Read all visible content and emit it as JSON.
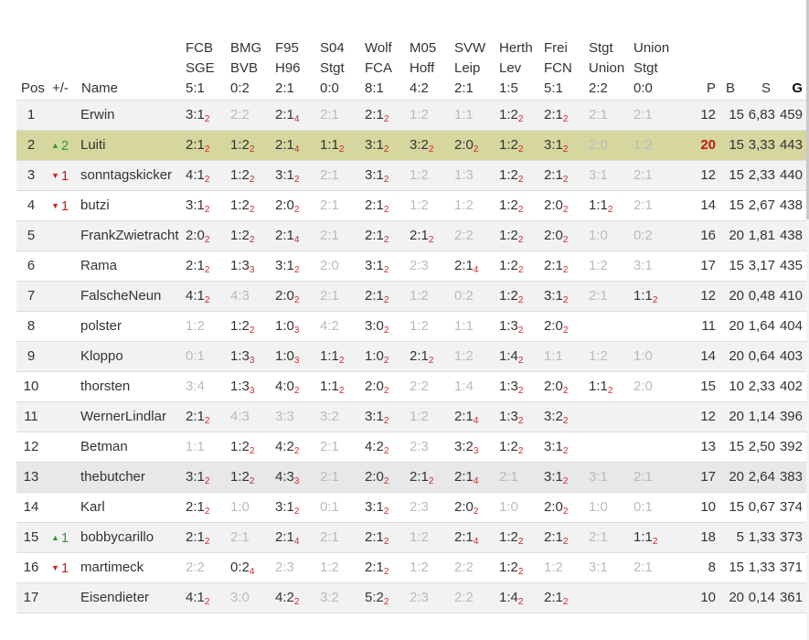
{
  "columns": {
    "pos": "Pos",
    "change": "+/-",
    "name": "Name",
    "matches": [
      {
        "home": "FCB",
        "away": "SGE",
        "result": "5:1"
      },
      {
        "home": "BMG",
        "away": "BVB",
        "result": "0:2"
      },
      {
        "home": "F95",
        "away": "H96",
        "result": "2:1"
      },
      {
        "home": "S04",
        "away": "Stgt",
        "result": "0:0"
      },
      {
        "home": "Wolf",
        "away": "FCA",
        "result": "8:1"
      },
      {
        "home": "M05",
        "away": "Hoff",
        "result": "4:2"
      },
      {
        "home": "SVW",
        "away": "Leip",
        "result": "2:1"
      },
      {
        "home": "Herth",
        "away": "Lev",
        "result": "1:5"
      },
      {
        "home": "Frei",
        "away": "FCN",
        "result": "5:1"
      },
      {
        "home": "Stgt",
        "away": "Union",
        "result": "2:2"
      },
      {
        "home": "Union",
        "away": "Stgt",
        "result": "0:0"
      }
    ],
    "p": "P",
    "b": "B",
    "s": "S",
    "g": "G"
  },
  "rows": [
    {
      "pos": "1",
      "change": "",
      "dir": "",
      "name": "Erwin",
      "tips": [
        {
          "t": "3:1",
          "n": "2"
        },
        {
          "t": "2:2",
          "f": true
        },
        {
          "t": "2:1",
          "n": "4"
        },
        {
          "t": "2:1",
          "f": true
        },
        {
          "t": "2:1",
          "n": "2"
        },
        {
          "t": "1:2",
          "f": true
        },
        {
          "t": "1:1",
          "f": true
        },
        {
          "t": "1:2",
          "n": "2"
        },
        {
          "t": "2:1",
          "n": "2"
        },
        {
          "t": "2:1",
          "f": true
        },
        {
          "t": "2:1",
          "f": true
        }
      ],
      "p": "12",
      "b": "15",
      "s": "6,83",
      "g": "459"
    },
    {
      "pos": "2",
      "change": "2",
      "dir": "up",
      "name": "Luiti",
      "tips": [
        {
          "t": "2:1",
          "n": "2"
        },
        {
          "t": "1:2",
          "n": "2"
        },
        {
          "t": "2:1",
          "n": "4"
        },
        {
          "t": "1:1",
          "n": "2"
        },
        {
          "t": "3:1",
          "n": "2"
        },
        {
          "t": "3:2",
          "n": "2"
        },
        {
          "t": "2:0",
          "n": "2"
        },
        {
          "t": "1:2",
          "n": "2"
        },
        {
          "t": "3:1",
          "n": "2"
        },
        {
          "t": "2:0",
          "f": true
        },
        {
          "t": "1:2",
          "f": true
        }
      ],
      "p": "20",
      "phi": true,
      "b": "15",
      "s": "3,33",
      "g": "443"
    },
    {
      "pos": "3",
      "change": "1",
      "dir": "down",
      "name": "sonntagskicker",
      "tips": [
        {
          "t": "4:1",
          "n": "2"
        },
        {
          "t": "1:2",
          "n": "2"
        },
        {
          "t": "3:1",
          "n": "2"
        },
        {
          "t": "2:1",
          "f": true
        },
        {
          "t": "3:1",
          "n": "2"
        },
        {
          "t": "1:2",
          "f": true
        },
        {
          "t": "1:3",
          "f": true
        },
        {
          "t": "1:2",
          "n": "2"
        },
        {
          "t": "2:1",
          "n": "2"
        },
        {
          "t": "3:1",
          "f": true
        },
        {
          "t": "2:1",
          "f": true
        }
      ],
      "p": "12",
      "b": "15",
      "s": "2,33",
      "g": "440"
    },
    {
      "pos": "4",
      "change": "1",
      "dir": "down",
      "name": "butzi",
      "tips": [
        {
          "t": "3:1",
          "n": "2"
        },
        {
          "t": "1:2",
          "n": "2"
        },
        {
          "t": "2:0",
          "n": "2"
        },
        {
          "t": "2:1",
          "f": true
        },
        {
          "t": "2:1",
          "n": "2"
        },
        {
          "t": "1:2",
          "f": true
        },
        {
          "t": "1:2",
          "f": true
        },
        {
          "t": "1:2",
          "n": "2"
        },
        {
          "t": "2:0",
          "n": "2"
        },
        {
          "t": "1:1",
          "n": "2"
        },
        {
          "t": "2:1",
          "f": true
        }
      ],
      "p": "14",
      "b": "15",
      "s": "2,67",
      "g": "438"
    },
    {
      "pos": "5",
      "change": "",
      "dir": "",
      "name": "FrankZwietracht",
      "tips": [
        {
          "t": "2:0",
          "n": "2"
        },
        {
          "t": "1:2",
          "n": "2"
        },
        {
          "t": "2:1",
          "n": "4"
        },
        {
          "t": "2:1",
          "f": true
        },
        {
          "t": "2:1",
          "n": "2"
        },
        {
          "t": "2:1",
          "n": "2"
        },
        {
          "t": "2:2",
          "f": true
        },
        {
          "t": "1:2",
          "n": "2"
        },
        {
          "t": "2:0",
          "n": "2"
        },
        {
          "t": "1:0",
          "f": true
        },
        {
          "t": "0:2",
          "f": true
        }
      ],
      "p": "16",
      "b": "20",
      "s": "1,81",
      "g": "438"
    },
    {
      "pos": "6",
      "change": "",
      "dir": "",
      "name": "Rama",
      "tips": [
        {
          "t": "2:1",
          "n": "2"
        },
        {
          "t": "1:3",
          "n": "3"
        },
        {
          "t": "3:1",
          "n": "2"
        },
        {
          "t": "2:0",
          "f": true
        },
        {
          "t": "3:1",
          "n": "2"
        },
        {
          "t": "2:3",
          "f": true
        },
        {
          "t": "2:1",
          "n": "4"
        },
        {
          "t": "1:2",
          "n": "2"
        },
        {
          "t": "2:1",
          "n": "2"
        },
        {
          "t": "1:2",
          "f": true
        },
        {
          "t": "3:1",
          "f": true
        }
      ],
      "p": "17",
      "b": "15",
      "s": "3,17",
      "g": "435"
    },
    {
      "pos": "7",
      "change": "",
      "dir": "",
      "name": "FalscheNeun",
      "tips": [
        {
          "t": "4:1",
          "n": "2"
        },
        {
          "t": "4:3",
          "f": true
        },
        {
          "t": "2:0",
          "n": "2"
        },
        {
          "t": "2:1",
          "f": true
        },
        {
          "t": "2:1",
          "n": "2"
        },
        {
          "t": "1:2",
          "f": true
        },
        {
          "t": "0:2",
          "f": true
        },
        {
          "t": "1:2",
          "n": "2"
        },
        {
          "t": "3:1",
          "n": "2"
        },
        {
          "t": "2:1",
          "f": true
        },
        {
          "t": "1:1",
          "n": "2"
        }
      ],
      "p": "12",
      "b": "20",
      "s": "0,48",
      "g": "410"
    },
    {
      "pos": "8",
      "change": "",
      "dir": "",
      "name": "polster",
      "tips": [
        {
          "t": "1:2",
          "f": true
        },
        {
          "t": "1:2",
          "n": "2"
        },
        {
          "t": "1:0",
          "n": "3"
        },
        {
          "t": "4:2",
          "f": true
        },
        {
          "t": "3:0",
          "n": "2"
        },
        {
          "t": "1:2",
          "f": true
        },
        {
          "t": "1:1",
          "f": true
        },
        {
          "t": "1:3",
          "n": "2"
        },
        {
          "t": "2:0",
          "n": "2"
        },
        {
          "t": ""
        },
        {
          "t": ""
        }
      ],
      "p": "11",
      "b": "20",
      "s": "1,64",
      "g": "404"
    },
    {
      "pos": "9",
      "change": "",
      "dir": "",
      "name": "Kloppo",
      "tips": [
        {
          "t": "0:1",
          "f": true
        },
        {
          "t": "1:3",
          "n": "3"
        },
        {
          "t": "1:0",
          "n": "3"
        },
        {
          "t": "1:1",
          "n": "2"
        },
        {
          "t": "1:0",
          "n": "2"
        },
        {
          "t": "2:1",
          "n": "2"
        },
        {
          "t": "1:2",
          "f": true
        },
        {
          "t": "1:4",
          "n": "2"
        },
        {
          "t": "1:1",
          "f": true
        },
        {
          "t": "1:2",
          "f": true
        },
        {
          "t": "1:0",
          "f": true
        }
      ],
      "p": "14",
      "b": "20",
      "s": "0,64",
      "g": "403"
    },
    {
      "pos": "10",
      "change": "",
      "dir": "",
      "name": "thorsten",
      "tips": [
        {
          "t": "3:4",
          "f": true
        },
        {
          "t": "1:3",
          "n": "3"
        },
        {
          "t": "4:0",
          "n": "2"
        },
        {
          "t": "1:1",
          "n": "2"
        },
        {
          "t": "2:0",
          "n": "2"
        },
        {
          "t": "2:2",
          "f": true
        },
        {
          "t": "1:4",
          "f": true
        },
        {
          "t": "1:3",
          "n": "2"
        },
        {
          "t": "2:0",
          "n": "2"
        },
        {
          "t": "1:1",
          "n": "2"
        },
        {
          "t": "2:0",
          "f": true
        }
      ],
      "p": "15",
      "b": "10",
      "s": "2,33",
      "g": "402"
    },
    {
      "pos": "11",
      "change": "",
      "dir": "",
      "name": "WernerLindlar",
      "tips": [
        {
          "t": "2:1",
          "n": "2"
        },
        {
          "t": "4:3",
          "f": true
        },
        {
          "t": "3:3",
          "f": true
        },
        {
          "t": "3:2",
          "f": true
        },
        {
          "t": "3:1",
          "n": "2"
        },
        {
          "t": "1:2",
          "f": true
        },
        {
          "t": "2:1",
          "n": "4"
        },
        {
          "t": "1:3",
          "n": "2"
        },
        {
          "t": "3:2",
          "n": "2"
        },
        {
          "t": ""
        },
        {
          "t": ""
        }
      ],
      "p": "12",
      "b": "20",
      "s": "1,14",
      "g": "396"
    },
    {
      "pos": "12",
      "change": "",
      "dir": "",
      "name": "Betman",
      "tips": [
        {
          "t": "1:1",
          "f": true
        },
        {
          "t": "1:2",
          "n": "2"
        },
        {
          "t": "4:2",
          "n": "2"
        },
        {
          "t": "2:1",
          "f": true
        },
        {
          "t": "4:2",
          "n": "2"
        },
        {
          "t": "2:3",
          "f": true
        },
        {
          "t": "3:2",
          "n": "3"
        },
        {
          "t": "1:2",
          "n": "2"
        },
        {
          "t": "3:1",
          "n": "2"
        },
        {
          "t": ""
        },
        {
          "t": ""
        }
      ],
      "p": "13",
      "b": "15",
      "s": "2,50",
      "g": "392"
    },
    {
      "pos": "13",
      "change": "",
      "dir": "",
      "name": "thebutcher",
      "tips": [
        {
          "t": "3:1",
          "n": "2"
        },
        {
          "t": "1:2",
          "n": "2"
        },
        {
          "t": "4:3",
          "n": "3"
        },
        {
          "t": "2:1",
          "f": true
        },
        {
          "t": "2:0",
          "n": "2"
        },
        {
          "t": "2:1",
          "n": "2"
        },
        {
          "t": "2:1",
          "n": "4"
        },
        {
          "t": "2:1",
          "f": true
        },
        {
          "t": "3:1",
          "n": "2"
        },
        {
          "t": "3:1",
          "f": true
        },
        {
          "t": "2:1",
          "f": true
        }
      ],
      "p": "17",
      "b": "20",
      "s": "2,64",
      "g": "383"
    },
    {
      "pos": "14",
      "change": "",
      "dir": "",
      "name": "Karl",
      "tips": [
        {
          "t": "2:1",
          "n": "2"
        },
        {
          "t": "1:0",
          "f": true
        },
        {
          "t": "3:1",
          "n": "2"
        },
        {
          "t": "0:1",
          "f": true
        },
        {
          "t": "3:1",
          "n": "2"
        },
        {
          "t": "2:3",
          "f": true
        },
        {
          "t": "2:0",
          "n": "2"
        },
        {
          "t": "1:0",
          "f": true
        },
        {
          "t": "2:0",
          "n": "2"
        },
        {
          "t": "1:0",
          "f": true
        },
        {
          "t": "0:1",
          "f": true
        }
      ],
      "p": "10",
      "b": "15",
      "s": "0,67",
      "g": "374"
    },
    {
      "pos": "15",
      "change": "1",
      "dir": "up",
      "name": "bobbycarillo",
      "tips": [
        {
          "t": "2:1",
          "n": "2"
        },
        {
          "t": "2:1",
          "f": true
        },
        {
          "t": "2:1",
          "n": "4"
        },
        {
          "t": "2:1",
          "f": true
        },
        {
          "t": "2:1",
          "n": "2"
        },
        {
          "t": "1:2",
          "f": true
        },
        {
          "t": "2:1",
          "n": "4"
        },
        {
          "t": "1:2",
          "n": "2"
        },
        {
          "t": "2:1",
          "n": "2"
        },
        {
          "t": "2:1",
          "f": true
        },
        {
          "t": "1:1",
          "n": "2"
        }
      ],
      "p": "18",
      "b": "5",
      "s": "1,33",
      "g": "373"
    },
    {
      "pos": "16",
      "change": "1",
      "dir": "down",
      "name": "martimeck",
      "tips": [
        {
          "t": "2:2",
          "f": true
        },
        {
          "t": "0:2",
          "n": "4"
        },
        {
          "t": "2:3",
          "f": true
        },
        {
          "t": "1:2",
          "f": true
        },
        {
          "t": "2:1",
          "n": "2"
        },
        {
          "t": "1:2",
          "f": true
        },
        {
          "t": "2:2",
          "f": true
        },
        {
          "t": "1:2",
          "n": "2"
        },
        {
          "t": "1:2",
          "f": true
        },
        {
          "t": "3:1",
          "f": true
        },
        {
          "t": "2:1",
          "f": true
        }
      ],
      "p": "8",
      "b": "15",
      "s": "1,33",
      "g": "371"
    },
    {
      "pos": "17",
      "change": "",
      "dir": "",
      "name": "Eisendieter",
      "tips": [
        {
          "t": "4:1",
          "n": "2"
        },
        {
          "t": "3:0",
          "f": true
        },
        {
          "t": "4:2",
          "n": "2"
        },
        {
          "t": "3:2",
          "f": true
        },
        {
          "t": "5:2",
          "n": "2"
        },
        {
          "t": "2:3",
          "f": true
        },
        {
          "t": "2:2",
          "f": true
        },
        {
          "t": "1:4",
          "n": "2"
        },
        {
          "t": "2:1",
          "n": "2"
        },
        {
          "t": ""
        },
        {
          "t": ""
        }
      ],
      "p": "10",
      "b": "20",
      "s": "0,14",
      "g": "361"
    }
  ],
  "colors": {
    "highlight_row": "#d5d79e",
    "top_points": "#c0180f",
    "up": "#2f9a2f",
    "down": "#c92222",
    "points_sub": "#cc2a2a"
  }
}
